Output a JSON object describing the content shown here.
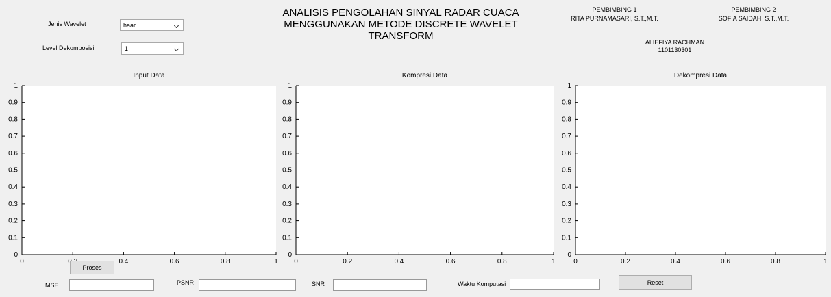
{
  "header": {
    "title_lines": [
      "ANALISIS PENGOLAHAN SINYAL RADAR CUACA",
      "MENGGUNAKAN METODE DISCRETE WAVELET",
      "TRANSFORM"
    ]
  },
  "credits": {
    "advisor1_role": "PEMBIMBING 1",
    "advisor1_name": "RITA PURNAMASARI, S.T.,M.T.",
    "advisor2_role": "PEMBIMBING 2",
    "advisor2_name": "SOFIA SAIDAH, S.T.,M.T.",
    "student_name": "ALIEFIYA RACHMAN",
    "student_id": "1101130301"
  },
  "controls": {
    "wavelet_label": "Jenis Wavelet",
    "wavelet_value": "haar",
    "level_label": "Level Dekomposisi",
    "level_value": "1"
  },
  "axes": [
    {
      "title": "Input Data",
      "xlim": [
        0,
        1
      ],
      "ylim": [
        0,
        1
      ],
      "xticks": [
        0,
        0.2,
        0.4,
        0.6,
        0.8,
        1
      ],
      "yticks": [
        0,
        0.1,
        0.2,
        0.3,
        0.4,
        0.5,
        0.6,
        0.7,
        0.8,
        0.9,
        1
      ]
    },
    {
      "title": "Kompresi Data",
      "xlim": [
        0,
        1
      ],
      "ylim": [
        0,
        1
      ],
      "xticks": [
        0,
        0.2,
        0.4,
        0.6,
        0.8,
        1
      ],
      "yticks": [
        0,
        0.1,
        0.2,
        0.3,
        0.4,
        0.5,
        0.6,
        0.7,
        0.8,
        0.9,
        1
      ]
    },
    {
      "title": "Dekompresi Data",
      "xlim": [
        0,
        1
      ],
      "ylim": [
        0,
        1
      ],
      "xticks": [
        0,
        0.2,
        0.4,
        0.6,
        0.8,
        1
      ],
      "yticks": [
        0,
        0.1,
        0.2,
        0.3,
        0.4,
        0.5,
        0.6,
        0.7,
        0.8,
        0.9,
        1
      ]
    }
  ],
  "bottom": {
    "proses": "Proses",
    "mse_label": "MSE",
    "psnr_label": "PSNR",
    "snr_label": "SNR",
    "time_label": "Waktu Komputasi",
    "reset": "Reset"
  }
}
